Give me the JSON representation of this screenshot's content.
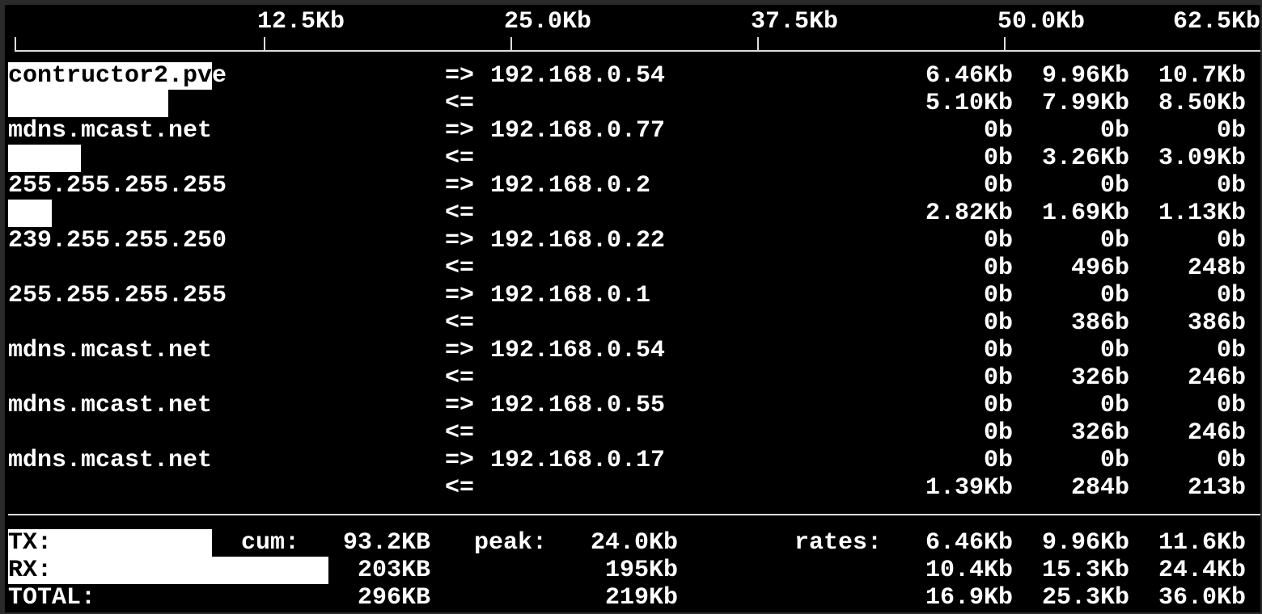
{
  "scale": {
    "ticks": [
      "12.5Kb",
      "25.0Kb",
      "37.5Kb",
      "50.0Kb",
      "62.5Kb"
    ]
  },
  "flows": [
    {
      "host": "contructor2.pve",
      "dest": "192.168.0.54",
      "tx": [
        "6.46Kb",
        "9.96Kb",
        "10.7Kb"
      ],
      "rx": [
        "5.10Kb",
        "7.99Kb",
        "8.50Kb"
      ]
    },
    {
      "host": "mdns.mcast.net",
      "dest": "192.168.0.77",
      "tx": [
        "0b",
        "0b",
        "0b"
      ],
      "rx": [
        "0b",
        "3.26Kb",
        "3.09Kb"
      ]
    },
    {
      "host": "255.255.255.255",
      "dest": "192.168.0.2",
      "tx": [
        "0b",
        "0b",
        "0b"
      ],
      "rx": [
        "2.82Kb",
        "1.69Kb",
        "1.13Kb"
      ]
    },
    {
      "host": "239.255.255.250",
      "dest": "192.168.0.22",
      "tx": [
        "0b",
        "0b",
        "0b"
      ],
      "rx": [
        "0b",
        "496b",
        "248b"
      ]
    },
    {
      "host": "255.255.255.255",
      "dest": "192.168.0.1",
      "tx": [
        "0b",
        "0b",
        "0b"
      ],
      "rx": [
        "0b",
        "386b",
        "386b"
      ]
    },
    {
      "host": "mdns.mcast.net",
      "dest": "192.168.0.54",
      "tx": [
        "0b",
        "0b",
        "0b"
      ],
      "rx": [
        "0b",
        "326b",
        "246b"
      ]
    },
    {
      "host": "mdns.mcast.net",
      "dest": "192.168.0.55",
      "tx": [
        "0b",
        "0b",
        "0b"
      ],
      "rx": [
        "0b",
        "326b",
        "246b"
      ]
    },
    {
      "host": "mdns.mcast.net",
      "dest": "192.168.0.17",
      "tx": [
        "0b",
        "0b",
        "0b"
      ],
      "rx": [
        "1.39Kb",
        "284b",
        "213b"
      ]
    }
  ],
  "arrows": {
    "out": "=>",
    "in": "<="
  },
  "totals": {
    "labels": {
      "tx": "TX:",
      "rx": "RX:",
      "total": "TOTAL:",
      "cum": "cum:",
      "peak": "peak:",
      "rates": "rates:"
    },
    "tx": {
      "cum": "93.2KB",
      "peak": "24.0Kb",
      "rates": [
        "6.46Kb",
        "9.96Kb",
        "11.6Kb"
      ]
    },
    "rx": {
      "cum": "203KB",
      "peak": "195Kb",
      "rates": [
        "10.4Kb",
        "15.3Kb",
        "24.4Kb"
      ]
    },
    "total": {
      "cum": "296KB",
      "peak": "219Kb",
      "rates": [
        "16.9Kb",
        "25.3Kb",
        "36.0Kb"
      ]
    }
  }
}
